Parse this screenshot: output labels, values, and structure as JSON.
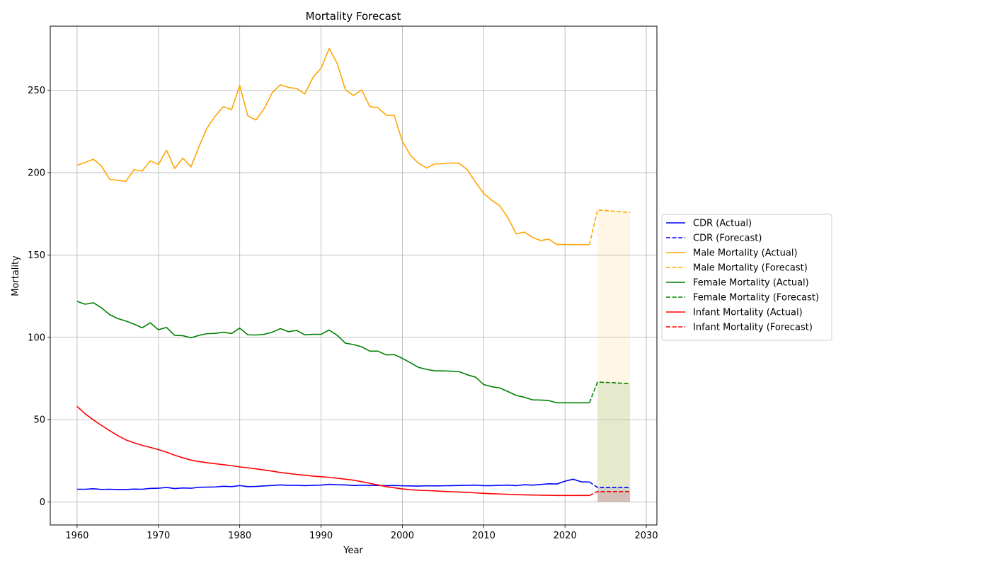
{
  "chart_data": {
    "type": "line",
    "title": "Mortality Forecast",
    "xlabel": "Year",
    "ylabel": "Mortality",
    "xlim": [
      1956.7,
      2031.3
    ],
    "ylim": [
      -14,
      289
    ],
    "xticks": [
      1960,
      1970,
      1980,
      1990,
      2000,
      2010,
      2020,
      2030
    ],
    "yticks": [
      0,
      50,
      100,
      150,
      200,
      250
    ],
    "grid": true,
    "legend_position": "outside-right",
    "years_actual": [
      1960,
      1961,
      1962,
      1963,
      1964,
      1965,
      1966,
      1967,
      1968,
      1969,
      1970,
      1971,
      1972,
      1973,
      1974,
      1975,
      1976,
      1977,
      1978,
      1979,
      1980,
      1981,
      1982,
      1983,
      1984,
      1985,
      1986,
      1987,
      1988,
      1989,
      1990,
      1991,
      1992,
      1993,
      1994,
      1995,
      1996,
      1997,
      1998,
      1999,
      2000,
      2001,
      2002,
      2003,
      2004,
      2005,
      2006,
      2007,
      2008,
      2009,
      2010,
      2011,
      2012,
      2013,
      2014,
      2015,
      2016,
      2017,
      2018,
      2019,
      2020,
      2021,
      2022,
      2023
    ],
    "years_forecast": [
      2024,
      2025,
      2026,
      2027,
      2028
    ],
    "series": [
      {
        "name": "CDR (Actual)",
        "color": "#0000ff",
        "dash": false,
        "values": [
          7.7,
          7.7,
          8.0,
          7.6,
          7.7,
          7.5,
          7.5,
          7.8,
          7.7,
          8.2,
          8.3,
          8.8,
          8.1,
          8.5,
          8.3,
          8.9,
          9.0,
          9.1,
          9.5,
          9.3,
          9.9,
          9.3,
          9.4,
          9.7,
          10.0,
          10.3,
          10.1,
          10.1,
          9.9,
          10.1,
          10.2,
          10.7,
          10.4,
          10.3,
          10.0,
          10.1,
          10.1,
          10.0,
          9.9,
          10.0,
          9.8,
          9.7,
          9.6,
          9.8,
          9.7,
          9.8,
          9.9,
          10.0,
          10.1,
          10.2,
          9.9,
          9.9,
          10.1,
          10.2,
          9.9,
          10.4,
          10.2,
          10.6,
          11.0,
          10.9,
          12.6,
          13.8,
          12.2,
          12.1
        ]
      },
      {
        "name": "CDR (Forecast)",
        "color": "#0000ff",
        "dash": true,
        "forecast": true,
        "values": [
          8.8,
          8.8,
          8.8,
          8.8,
          8.8
        ]
      },
      {
        "name": "Male Mortality (Actual)",
        "color": "#ffa500",
        "dash": false,
        "values": [
          204.5,
          206.2,
          208.2,
          204.0,
          196.0,
          195.3,
          194.8,
          201.8,
          201.0,
          207.2,
          205.0,
          213.6,
          202.5,
          208.9,
          203.5,
          216.0,
          227.3,
          234.5,
          240.1,
          238.3,
          253.0,
          234.5,
          232.0,
          238.9,
          248.6,
          253.4,
          251.8,
          251.1,
          247.8,
          257.8,
          263.5,
          275.4,
          266.2,
          250.3,
          246.9,
          250.3,
          240.1,
          239.5,
          235.0,
          234.7,
          219.0,
          210.5,
          205.7,
          202.8,
          205.4,
          205.4,
          205.9,
          205.7,
          201.7,
          194.2,
          187.4,
          183.2,
          179.8,
          172.5,
          162.8,
          163.9,
          160.7,
          158.8,
          159.6,
          156.4,
          156.4,
          156.3,
          156.3,
          156.3
        ]
      },
      {
        "name": "Male Mortality (Forecast)",
        "color": "#ffa500",
        "dash": true,
        "forecast": true,
        "values": [
          177.3,
          177.0,
          176.6,
          176.2,
          175.8
        ]
      },
      {
        "name": "Female Mortality (Actual)",
        "color": "#008000",
        "dash": false,
        "values": [
          121.8,
          120.1,
          121.0,
          117.9,
          113.8,
          111.4,
          109.9,
          108.0,
          105.8,
          108.8,
          104.6,
          106.0,
          101.2,
          101.0,
          99.7,
          101.2,
          102.2,
          102.4,
          103.1,
          102.3,
          105.6,
          101.5,
          101.4,
          101.8,
          103.1,
          105.3,
          103.4,
          104.2,
          101.5,
          101.8,
          101.8,
          104.4,
          101.2,
          96.4,
          95.6,
          94.2,
          91.6,
          91.6,
          89.3,
          89.5,
          87.2,
          84.5,
          81.7,
          80.5,
          79.6,
          79.6,
          79.4,
          79.1,
          77.2,
          75.8,
          71.3,
          70.0,
          69.2,
          67.0,
          64.7,
          63.6,
          62.0,
          61.9,
          61.6,
          60.2,
          60.2,
          60.2,
          60.2,
          60.2
        ]
      },
      {
        "name": "Female Mortality (Forecast)",
        "color": "#008000",
        "dash": true,
        "forecast": true,
        "values": [
          72.8,
          72.6,
          72.4,
          72.1,
          71.9
        ]
      },
      {
        "name": "Infant Mortality (Actual)",
        "color": "#ff0000",
        "dash": false,
        "values": [
          58.0,
          53.5,
          49.8,
          46.5,
          43.3,
          40.3,
          37.7,
          35.9,
          34.4,
          33.1,
          31.8,
          30.2,
          28.4,
          26.8,
          25.4,
          24.5,
          23.8,
          23.2,
          22.6,
          22.0,
          21.3,
          20.7,
          20.1,
          19.4,
          18.7,
          17.9,
          17.3,
          16.7,
          16.2,
          15.7,
          15.3,
          14.9,
          14.4,
          13.8,
          13.2,
          12.3,
          11.3,
          10.3,
          9.3,
          8.6,
          7.9,
          7.4,
          7.1,
          6.9,
          6.7,
          6.4,
          6.2,
          6.0,
          5.8,
          5.5,
          5.2,
          5.0,
          4.8,
          4.6,
          4.4,
          4.3,
          4.2,
          4.1,
          4.0,
          3.9,
          3.9,
          3.9,
          3.9,
          3.9
        ]
      },
      {
        "name": "Infant Mortality (Forecast)",
        "color": "#ff0000",
        "dash": true,
        "forecast": true,
        "values": [
          6.3,
          6.3,
          6.3,
          6.3,
          6.3
        ]
      }
    ]
  }
}
